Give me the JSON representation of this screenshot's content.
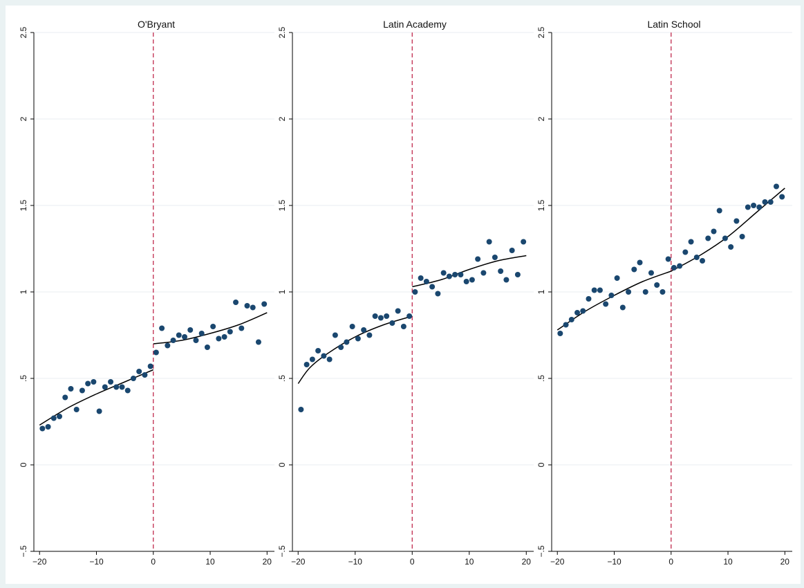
{
  "chart_data": [
    {
      "type": "scatter",
      "title": "O'Bryant",
      "xlim": [
        -21,
        21.3
      ],
      "ylim": [
        -0.5,
        2.5
      ],
      "xticks": [
        -20,
        -10,
        0,
        10,
        20
      ],
      "xtick_labels": [
        "−20",
        "−10",
        "0",
        "10",
        "20"
      ],
      "yticks": [
        -0.5,
        0,
        0.5,
        1,
        1.5,
        2,
        2.5
      ],
      "ytick_labels": [
        "−.5",
        "0",
        ".5",
        "1",
        "1.5",
        "2",
        "2.5"
      ],
      "grid": true,
      "cutoff_x": 0,
      "points": [
        [
          -19.5,
          0.21
        ],
        [
          -18.5,
          0.22
        ],
        [
          -17.5,
          0.27
        ],
        [
          -16.5,
          0.28
        ],
        [
          -15.5,
          0.39
        ],
        [
          -14.5,
          0.44
        ],
        [
          -13.5,
          0.32
        ],
        [
          -12.5,
          0.43
        ],
        [
          -11.5,
          0.47
        ],
        [
          -10.5,
          0.48
        ],
        [
          -9.5,
          0.31
        ],
        [
          -8.5,
          0.45
        ],
        [
          -7.5,
          0.48
        ],
        [
          -6.5,
          0.45
        ],
        [
          -5.5,
          0.45
        ],
        [
          -4.5,
          0.43
        ],
        [
          -3.5,
          0.5
        ],
        [
          -2.5,
          0.54
        ],
        [
          -1.5,
          0.52
        ],
        [
          -0.5,
          0.57
        ],
        [
          0.5,
          0.65
        ],
        [
          1.5,
          0.79
        ],
        [
          2.5,
          0.69
        ],
        [
          3.5,
          0.72
        ],
        [
          4.5,
          0.75
        ],
        [
          5.5,
          0.74
        ],
        [
          6.5,
          0.78
        ],
        [
          7.5,
          0.72
        ],
        [
          8.5,
          0.76
        ],
        [
          9.5,
          0.68
        ],
        [
          10.5,
          0.8
        ],
        [
          11.5,
          0.73
        ],
        [
          12.5,
          0.74
        ],
        [
          13.5,
          0.77
        ],
        [
          14.5,
          0.94
        ],
        [
          15.5,
          0.79
        ],
        [
          16.5,
          0.92
        ],
        [
          17.5,
          0.91
        ],
        [
          18.5,
          0.71
        ],
        [
          19.5,
          0.93
        ]
      ],
      "fit_left": [
        [
          -20,
          0.23
        ],
        [
          -15,
          0.33
        ],
        [
          -10,
          0.41
        ],
        [
          -5,
          0.48
        ],
        [
          0,
          0.55
        ]
      ],
      "fit_right": [
        [
          0,
          0.7
        ],
        [
          5,
          0.72
        ],
        [
          10,
          0.76
        ],
        [
          15,
          0.81
        ],
        [
          20,
          0.88
        ]
      ]
    },
    {
      "type": "scatter",
      "title": "Latin Academy",
      "xlim": [
        -21,
        21.3
      ],
      "ylim": [
        -0.5,
        2.5
      ],
      "xticks": [
        -20,
        -10,
        0,
        10,
        20
      ],
      "xtick_labels": [
        "−20",
        "−10",
        "0",
        "10",
        "20"
      ],
      "yticks": [
        -0.5,
        0,
        0.5,
        1,
        1.5,
        2,
        2.5
      ],
      "ytick_labels": [
        "−.5",
        "0",
        ".5",
        "1",
        "1.5",
        "2",
        "2.5"
      ],
      "grid": true,
      "cutoff_x": 0,
      "points": [
        [
          -19.5,
          0.32
        ],
        [
          -18.5,
          0.58
        ],
        [
          -17.5,
          0.61
        ],
        [
          -16.5,
          0.66
        ],
        [
          -15.5,
          0.63
        ],
        [
          -14.5,
          0.61
        ],
        [
          -13.5,
          0.75
        ],
        [
          -12.5,
          0.68
        ],
        [
          -11.5,
          0.71
        ],
        [
          -10.5,
          0.8
        ],
        [
          -9.5,
          0.73
        ],
        [
          -8.5,
          0.78
        ],
        [
          -7.5,
          0.75
        ],
        [
          -6.5,
          0.86
        ],
        [
          -5.5,
          0.85
        ],
        [
          -4.5,
          0.86
        ],
        [
          -3.5,
          0.82
        ],
        [
          -2.5,
          0.89
        ],
        [
          -1.5,
          0.8
        ],
        [
          -0.5,
          0.86
        ],
        [
          0.5,
          1.0
        ],
        [
          1.5,
          1.08
        ],
        [
          2.5,
          1.06
        ],
        [
          3.5,
          1.03
        ],
        [
          4.5,
          0.99
        ],
        [
          5.5,
          1.11
        ],
        [
          6.5,
          1.09
        ],
        [
          7.5,
          1.1
        ],
        [
          8.5,
          1.1
        ],
        [
          9.5,
          1.06
        ],
        [
          10.5,
          1.07
        ],
        [
          11.5,
          1.19
        ],
        [
          12.5,
          1.11
        ],
        [
          13.5,
          1.29
        ],
        [
          14.5,
          1.2
        ],
        [
          15.5,
          1.12
        ],
        [
          16.5,
          1.07
        ],
        [
          17.5,
          1.24
        ],
        [
          18.5,
          1.1
        ],
        [
          19.5,
          1.29
        ]
      ],
      "fit_left": [
        [
          -20,
          0.47
        ],
        [
          -18,
          0.56
        ],
        [
          -15,
          0.64
        ],
        [
          -10,
          0.74
        ],
        [
          -5,
          0.81
        ],
        [
          0,
          0.86
        ]
      ],
      "fit_right": [
        [
          0,
          1.03
        ],
        [
          5,
          1.07
        ],
        [
          10,
          1.13
        ],
        [
          15,
          1.18
        ],
        [
          20,
          1.21
        ]
      ]
    },
    {
      "type": "scatter",
      "title": "Latin School",
      "xlim": [
        -21,
        21.3
      ],
      "ylim": [
        -0.5,
        2.5
      ],
      "xticks": [
        -20,
        -10,
        0,
        10,
        20
      ],
      "xtick_labels": [
        "−20",
        "−10",
        "0",
        "10",
        "20"
      ],
      "yticks": [
        -0.5,
        0,
        0.5,
        1,
        1.5,
        2,
        2.5
      ],
      "ytick_labels": [
        "−.5",
        "0",
        ".5",
        "1",
        "1.5",
        "2",
        "2.5"
      ],
      "grid": true,
      "cutoff_x": 0,
      "points": [
        [
          -19.5,
          0.76
        ],
        [
          -18.5,
          0.81
        ],
        [
          -17.5,
          0.84
        ],
        [
          -16.5,
          0.88
        ],
        [
          -15.5,
          0.89
        ],
        [
          -14.5,
          0.96
        ],
        [
          -13.5,
          1.01
        ],
        [
          -12.5,
          1.01
        ],
        [
          -11.5,
          0.93
        ],
        [
          -10.5,
          0.98
        ],
        [
          -9.5,
          1.08
        ],
        [
          -8.5,
          0.91
        ],
        [
          -7.5,
          1.0
        ],
        [
          -6.5,
          1.13
        ],
        [
          -5.5,
          1.17
        ],
        [
          -4.5,
          1.0
        ],
        [
          -3.5,
          1.11
        ],
        [
          -2.5,
          1.04
        ],
        [
          -1.5,
          1.0
        ],
        [
          -0.5,
          1.19
        ],
        [
          0.5,
          1.14
        ],
        [
          1.5,
          1.15
        ],
        [
          2.5,
          1.23
        ],
        [
          3.5,
          1.29
        ],
        [
          4.5,
          1.2
        ],
        [
          5.5,
          1.18
        ],
        [
          6.5,
          1.31
        ],
        [
          7.5,
          1.35
        ],
        [
          8.5,
          1.47
        ],
        [
          9.5,
          1.31
        ],
        [
          10.5,
          1.26
        ],
        [
          11.5,
          1.41
        ],
        [
          12.5,
          1.32
        ],
        [
          13.5,
          1.49
        ],
        [
          14.5,
          1.5
        ],
        [
          15.5,
          1.49
        ],
        [
          16.5,
          1.52
        ],
        [
          17.5,
          1.52
        ],
        [
          18.5,
          1.61
        ],
        [
          19.5,
          1.55
        ]
      ],
      "fit_left": [
        [
          -20,
          0.78
        ],
        [
          -15,
          0.89
        ],
        [
          -10,
          0.98
        ],
        [
          -5,
          1.06
        ],
        [
          0,
          1.12
        ]
      ],
      "fit_right": [
        [
          0,
          1.12
        ],
        [
          5,
          1.21
        ],
        [
          10,
          1.32
        ],
        [
          15,
          1.46
        ],
        [
          20,
          1.6
        ]
      ]
    }
  ],
  "colors": {
    "background": "#eaf2f3",
    "plot_background": "#ffffff",
    "marker": "#1a476f",
    "fit_line": "#000000",
    "cutoff_line": "#c0284c"
  }
}
